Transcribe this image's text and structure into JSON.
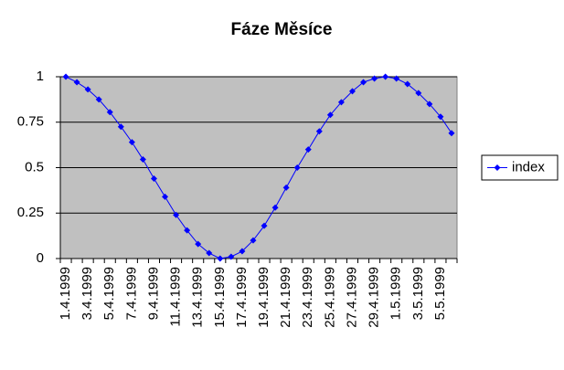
{
  "chart_data": {
    "type": "line",
    "title": "Fáze Měsíce",
    "categories": [
      "1.4.1999",
      null,
      "3.4.1999",
      null,
      "5.4.1999",
      null,
      "7.4.1999",
      null,
      "9.4.1999",
      null,
      "11.4.1999",
      null,
      "13.4.1999",
      null,
      "15.4.1999",
      null,
      "17.4.1999",
      null,
      "19.4.1999",
      null,
      "21.4.1999",
      null,
      "23.4.1999",
      null,
      "25.4.1999",
      null,
      "27.4.1999",
      null,
      "29.4.1999",
      null,
      "1.5.1999",
      null,
      "3.5.1999",
      null,
      "5.5.1999",
      null
    ],
    "series": [
      {
        "name": "index",
        "color": "#0000ff",
        "values": [
          1,
          0.97,
          0.93,
          0.875,
          0.805,
          0.725,
          0.64,
          0.545,
          0.44,
          0.34,
          0.24,
          0.155,
          0.08,
          0.03,
          0,
          0.01,
          0.04,
          0.1,
          0.18,
          0.28,
          0.39,
          0.5,
          0.6,
          0.7,
          0.79,
          0.86,
          0.92,
          0.97,
          0.99,
          1,
          0.99,
          0.96,
          0.91,
          0.85,
          0.78,
          0.69
        ]
      }
    ],
    "ylim": [
      0,
      1
    ],
    "yticks": [
      0,
      0.25,
      0.5,
      0.75,
      1
    ],
    "grid": true,
    "legend": "right",
    "plot_background": "#c0c0c0"
  }
}
